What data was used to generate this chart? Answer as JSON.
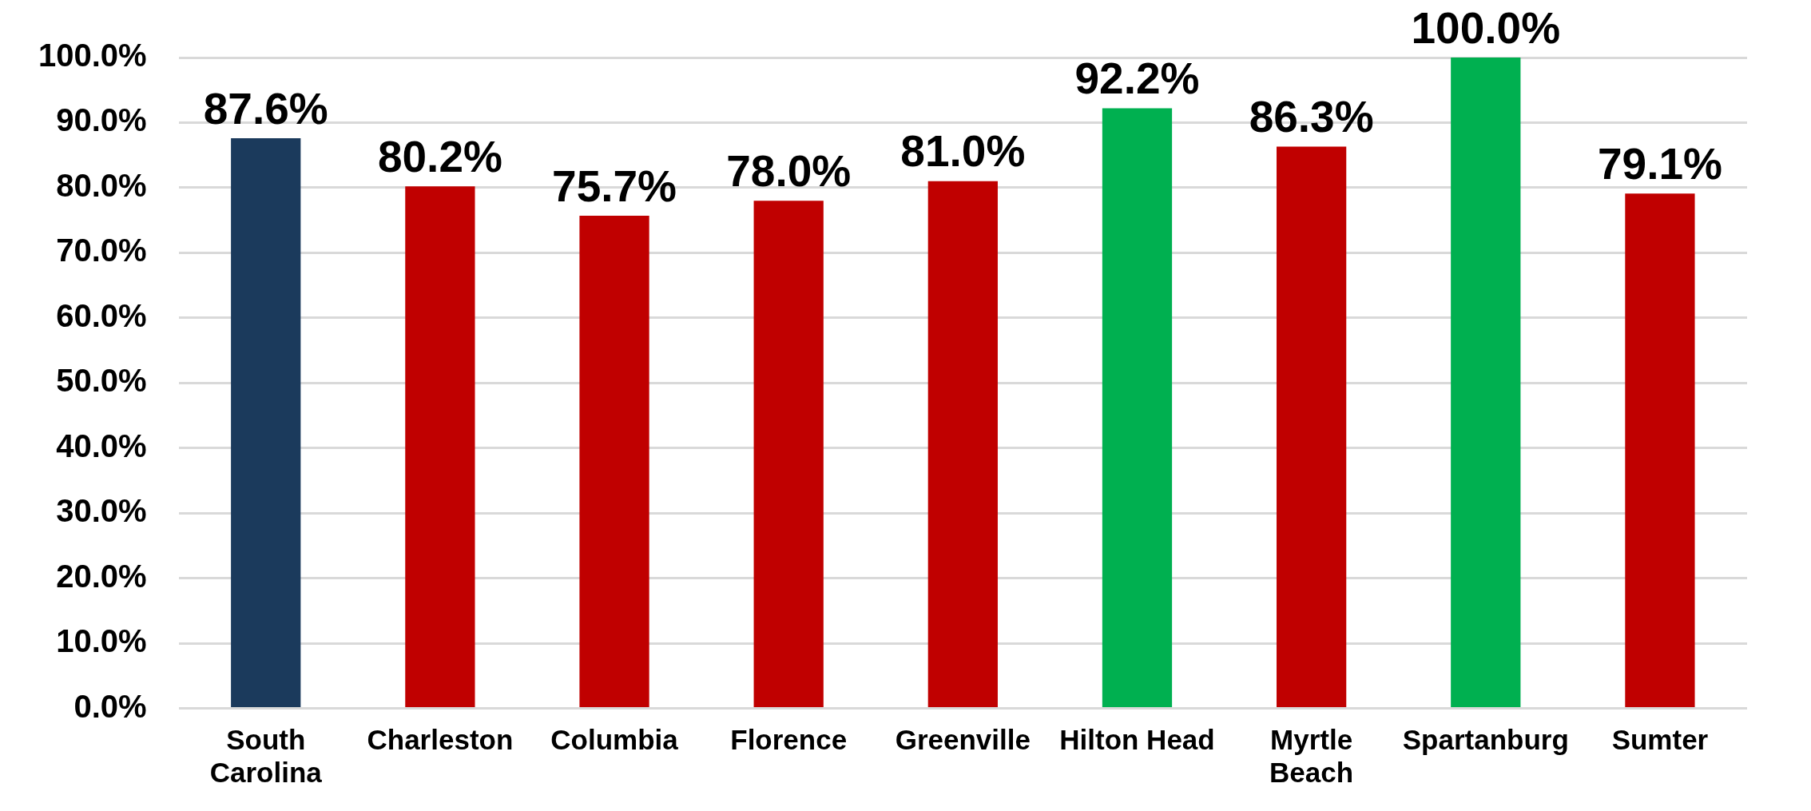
{
  "chart_data": {
    "type": "bar",
    "categories": [
      "South Carolina",
      "Charleston",
      "Columbia",
      "Florence",
      "Greenville",
      "Hilton Head",
      "Myrtle Beach",
      "Spartanburg",
      "Sumter"
    ],
    "values": [
      87.6,
      80.2,
      75.7,
      78.0,
      81.0,
      92.2,
      86.3,
      100.0,
      79.1
    ],
    "colors": [
      "#1b3a5c",
      "#c00000",
      "#c00000",
      "#c00000",
      "#c00000",
      "#00b050",
      "#c00000",
      "#00b050",
      "#c00000"
    ],
    "value_labels": [
      "87.6%",
      "80.2%",
      "75.7%",
      "78.0%",
      "81.0%",
      "92.2%",
      "86.3%",
      "100.0%",
      "79.1%"
    ],
    "ylim": [
      0,
      100
    ],
    "yticks": [
      {
        "value": 0,
        "label": "0.0%"
      },
      {
        "value": 10,
        "label": "10.0%"
      },
      {
        "value": 20,
        "label": "20.0%"
      },
      {
        "value": 30,
        "label": "30.0%"
      },
      {
        "value": 40,
        "label": "40.0%"
      },
      {
        "value": 50,
        "label": "50.0%"
      },
      {
        "value": 60,
        "label": "60.0%"
      },
      {
        "value": 70,
        "label": "70.0%"
      },
      {
        "value": 80,
        "label": "80.0%"
      },
      {
        "value": 90,
        "label": "90.0%"
      },
      {
        "value": 100,
        "label": "100.0%"
      }
    ],
    "grid": "y",
    "legend": false
  }
}
